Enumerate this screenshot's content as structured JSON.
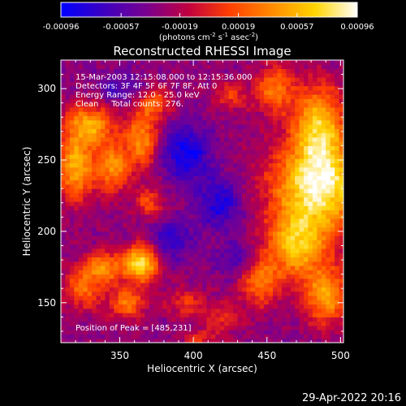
{
  "chart_data": {
    "type": "heatmap",
    "title": "Reconstructed RHESSI Image",
    "xlabel": "Heliocentric X (arcsec)",
    "ylabel": "Heliocentric Y (arcsec)",
    "xlim": [
      310,
      502
    ],
    "ylim": [
      122,
      320
    ],
    "x_ticks": [
      350,
      400,
      450,
      500
    ],
    "y_ticks": [
      150,
      200,
      250,
      300
    ],
    "colorbar": {
      "label": "(photons cm-2 s-1 asec-2)",
      "label_base": "(photons cm",
      "label_sup1": "-2",
      "label_mid1": " s",
      "label_sup2": "-1",
      "label_mid2": " asec",
      "label_sup3": "-2",
      "label_end": ")",
      "min": -0.00096,
      "max": 0.00096,
      "ticks": [
        "-0.00096",
        "-0.00057",
        "-0.00019",
        "0.00019",
        "0.00057",
        "0.00096"
      ],
      "colors": [
        "#0000ff",
        "#3c00c0",
        "#780090",
        "#c00040",
        "#ff4000",
        "#ff8c00",
        "#ffd400",
        "#ffffff"
      ]
    },
    "annotations": [
      "15-Mar-2003 12:15:08.000 to 12:15:36.000",
      "Detectors: 3F 4F 5F 6F 7F 8F, Att 0",
      "Energy Range: 12.0 - 25.0 keV",
      "Clean     Total counts: 276."
    ],
    "peak_label": "Position of Peak = [485,231]",
    "peak": [
      485,
      231
    ],
    "timestamp": "29-Apr-2022 20:16",
    "sources": [
      {
        "x": 485,
        "y": 231,
        "amp": 1.05,
        "sx": 22,
        "sy": 22
      },
      {
        "x": 485,
        "y": 275,
        "amp": 0.8,
        "sx": 12,
        "sy": 20
      },
      {
        "x": 470,
        "y": 190,
        "amp": 0.75,
        "sx": 14,
        "sy": 15
      },
      {
        "x": 490,
        "y": 155,
        "amp": 0.7,
        "sx": 11,
        "sy": 14
      },
      {
        "x": 445,
        "y": 165,
        "amp": 0.55,
        "sx": 10,
        "sy": 12
      },
      {
        "x": 455,
        "y": 300,
        "amp": 0.55,
        "sx": 9,
        "sy": 12
      },
      {
        "x": 425,
        "y": 295,
        "amp": 0.35,
        "sx": 8,
        "sy": 7
      },
      {
        "x": 330,
        "y": 275,
        "amp": 0.7,
        "sx": 12,
        "sy": 10
      },
      {
        "x": 320,
        "y": 245,
        "amp": 0.75,
        "sx": 9,
        "sy": 16
      },
      {
        "x": 345,
        "y": 245,
        "amp": 0.65,
        "sx": 8,
        "sy": 12
      },
      {
        "x": 365,
        "y": 265,
        "amp": 0.65,
        "sx": 8,
        "sy": 14
      },
      {
        "x": 375,
        "y": 290,
        "amp": 0.45,
        "sx": 8,
        "sy": 7
      },
      {
        "x": 370,
        "y": 220,
        "amp": 0.4,
        "sx": 7,
        "sy": 8
      },
      {
        "x": 365,
        "y": 178,
        "amp": 0.95,
        "sx": 8,
        "sy": 9
      },
      {
        "x": 340,
        "y": 175,
        "amp": 0.6,
        "sx": 10,
        "sy": 8
      },
      {
        "x": 325,
        "y": 160,
        "amp": 0.5,
        "sx": 9,
        "sy": 10
      },
      {
        "x": 355,
        "y": 150,
        "amp": 0.55,
        "sx": 9,
        "sy": 8
      },
      {
        "x": 395,
        "y": 150,
        "amp": 0.35,
        "sx": 9,
        "sy": 7
      },
      {
        "x": 420,
        "y": 140,
        "amp": 0.3,
        "sx": 8,
        "sy": 7
      },
      {
        "x": 405,
        "y": 125,
        "amp": 0.3,
        "sx": 9,
        "sy": 5
      },
      {
        "x": 395,
        "y": 255,
        "amp": -0.5,
        "sx": 12,
        "sy": 14
      },
      {
        "x": 418,
        "y": 220,
        "amp": -0.45,
        "sx": 10,
        "sy": 12
      },
      {
        "x": 385,
        "y": 195,
        "amp": -0.35,
        "sx": 10,
        "sy": 10
      },
      {
        "x": 430,
        "y": 180,
        "amp": -0.3,
        "sx": 9,
        "sy": 9
      },
      {
        "x": 350,
        "y": 300,
        "amp": -0.25,
        "sx": 10,
        "sy": 8
      }
    ]
  }
}
